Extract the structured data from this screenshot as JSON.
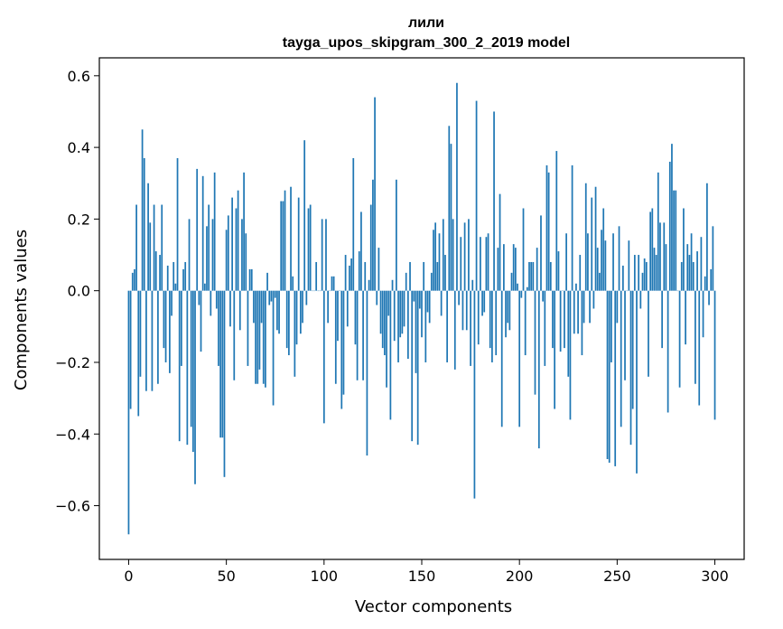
{
  "chart_data": {
    "type": "bar",
    "title_line1": "лили",
    "title_line2": "tayga_upos_skipgram_300_2_2019 model",
    "xlabel": "Vector components",
    "ylabel": "Components values",
    "xlim": [
      -15,
      315
    ],
    "ylim": [
      -0.75,
      0.65
    ],
    "xticks": [
      0,
      50,
      100,
      150,
      200,
      250,
      300
    ],
    "xtick_labels": [
      "0",
      "50",
      "100",
      "150",
      "200",
      "250",
      "300"
    ],
    "yticks": [
      -0.6,
      -0.4,
      -0.2,
      0.0,
      0.2,
      0.4,
      0.6
    ],
    "ytick_labels": [
      "−0.6",
      "−0.4",
      "−0.2",
      "0.0",
      "0.2",
      "0.4",
      "0.6"
    ],
    "bar_color": "#1f77b4",
    "grid": false,
    "values": [
      -0.68,
      -0.33,
      0.05,
      0.06,
      0.24,
      -0.35,
      -0.24,
      0.45,
      0.37,
      -0.28,
      0.3,
      0.19,
      -0.28,
      0.24,
      0.11,
      -0.26,
      0.1,
      0.24,
      -0.16,
      -0.2,
      0.07,
      -0.23,
      -0.07,
      0.08,
      0.02,
      0.37,
      -0.42,
      -0.21,
      0.06,
      0.08,
      -0.43,
      0.2,
      -0.38,
      -0.45,
      -0.54,
      0.34,
      -0.04,
      -0.17,
      0.32,
      0.02,
      0.18,
      0.24,
      -0.07,
      0.2,
      0.33,
      -0.05,
      -0.21,
      -0.41,
      -0.41,
      -0.52,
      0.17,
      0.21,
      -0.1,
      0.26,
      -0.25,
      0.23,
      0.28,
      -0.11,
      0.2,
      0.33,
      0.16,
      -0.21,
      0.06,
      0.06,
      -0.09,
      -0.26,
      -0.26,
      -0.22,
      -0.09,
      -0.26,
      -0.27,
      0.05,
      -0.04,
      -0.03,
      -0.32,
      -0.02,
      -0.11,
      -0.12,
      0.25,
      0.25,
      0.28,
      -0.16,
      -0.18,
      0.29,
      0.04,
      -0.24,
      -0.15,
      0.26,
      -0.12,
      -0.09,
      0.42,
      -0.04,
      0.23,
      0.24,
      0.0,
      0.0,
      0.08,
      0.0,
      0.0,
      0.2,
      -0.37,
      0.2,
      -0.09,
      0.0,
      0.04,
      0.04,
      -0.26,
      -0.14,
      0.0,
      -0.33,
      -0.29,
      0.1,
      -0.1,
      0.07,
      0.09,
      0.37,
      -0.15,
      -0.25,
      0.11,
      0.22,
      -0.25,
      0.08,
      -0.46,
      0.03,
      0.24,
      0.31,
      0.54,
      -0.04,
      0.12,
      -0.12,
      -0.16,
      -0.18,
      -0.27,
      -0.07,
      -0.36,
      0.03,
      -0.14,
      0.31,
      -0.2,
      -0.13,
      -0.12,
      -0.1,
      0.05,
      -0.19,
      0.08,
      -0.42,
      -0.03,
      -0.23,
      -0.43,
      -0.05,
      -0.13,
      0.08,
      -0.2,
      -0.06,
      -0.09,
      0.05,
      0.17,
      0.19,
      0.08,
      0.16,
      -0.07,
      0.2,
      0.1,
      -0.2,
      0.46,
      0.41,
      0.2,
      -0.22,
      0.58,
      -0.04,
      0.15,
      -0.11,
      0.19,
      -0.11,
      0.2,
      -0.21,
      0.03,
      -0.58,
      0.53,
      -0.15,
      0.15,
      -0.07,
      -0.06,
      0.15,
      0.16,
      -0.16,
      -0.2,
      0.5,
      -0.18,
      0.12,
      0.27,
      -0.38,
      0.13,
      -0.13,
      -0.09,
      -0.11,
      0.05,
      0.13,
      0.12,
      0.02,
      -0.38,
      -0.02,
      0.23,
      -0.18,
      0.01,
      0.08,
      0.08,
      0.08,
      -0.29,
      0.12,
      -0.44,
      0.21,
      -0.03,
      -0.21,
      0.35,
      0.33,
      0.08,
      -0.16,
      -0.33,
      0.39,
      0.11,
      -0.17,
      0.0,
      -0.16,
      0.16,
      -0.24,
      -0.36,
      0.35,
      -0.12,
      0.02,
      -0.12,
      0.1,
      -0.18,
      -0.09,
      0.3,
      0.16,
      -0.09,
      0.26,
      -0.05,
      0.29,
      0.12,
      0.05,
      0.17,
      0.23,
      0.14,
      -0.47,
      -0.48,
      -0.2,
      0.16,
      -0.49,
      -0.09,
      0.18,
      -0.38,
      0.07,
      -0.25,
      0.0,
      0.14,
      -0.43,
      -0.33,
      0.1,
      -0.51,
      0.1,
      -0.05,
      0.05,
      0.09,
      0.08,
      -0.24,
      0.22,
      0.23,
      0.12,
      0.1,
      0.33,
      0.19,
      -0.16,
      0.19,
      0.13,
      -0.34,
      0.36,
      0.41,
      0.28,
      0.28,
      0.0,
      -0.27,
      0.08,
      0.23,
      -0.15,
      0.13,
      0.1,
      0.16,
      0.08,
      -0.26,
      0.11,
      -0.32,
      0.15,
      -0.13,
      0.04,
      0.3,
      -0.04,
      0.06,
      0.18,
      -0.36
    ]
  }
}
